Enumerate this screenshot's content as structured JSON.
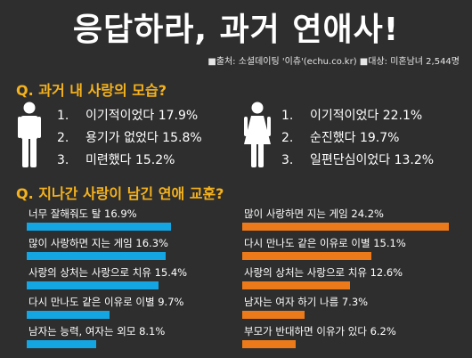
{
  "title": "응답하라, 과거 연애사!",
  "source": "■출처: 소셜데이팅 '이츄'(echu.co.kr) ■대상: 미혼남녀 2,544명",
  "q1": {
    "label": "Q. 과거 내 사랑의 모습?",
    "male": [
      {
        "num": "1.",
        "text": "이기적이었다 17.9%"
      },
      {
        "num": "2.",
        "text": "용기가 없었다 15.8%"
      },
      {
        "num": "3.",
        "text": "미련했다 15.2%"
      }
    ],
    "female": [
      {
        "num": "1.",
        "text": "이기적이었다 22.1%"
      },
      {
        "num": "2.",
        "text": "순진했다 19.7%"
      },
      {
        "num": "3.",
        "text": "일편단심이었다 13.2%"
      }
    ]
  },
  "q2": {
    "label": "Q. 지나간 사랑이 남긴 연애 교훈?",
    "male": [
      {
        "text": "너무 잘해줘도 탈 16.9%",
        "value": 16.9
      },
      {
        "text": "많이 사랑하면 지는 게임 16.3%",
        "value": 16.3
      },
      {
        "text": "사랑의 상처는 사랑으로 치유 15.4%",
        "value": 15.4
      },
      {
        "text": "다시 만나도 같은 이유로 이별 9.7%",
        "value": 9.7
      },
      {
        "text": "남자는 능력, 여자는 외모 8.1%",
        "value": 8.1
      }
    ],
    "female": [
      {
        "text": "많이 사랑하면 지는 게임 24.2%",
        "value": 24.2
      },
      {
        "text": "다시 만나도 같은 이유로 이별 15.1%",
        "value": 15.1
      },
      {
        "text": "사랑의 상처는 사랑으로 치유 12.6%",
        "value": 12.6
      },
      {
        "text": "남자는 여자 하기 나름 7.3%",
        "value": 7.3
      },
      {
        "text": "부모가 반대하면 이유가 있다 6.2%",
        "value": 6.2
      }
    ]
  },
  "colors": {
    "male_bar": "#14a6e3",
    "female_bar": "#ec7a1a",
    "question": "#f5b21d"
  }
}
